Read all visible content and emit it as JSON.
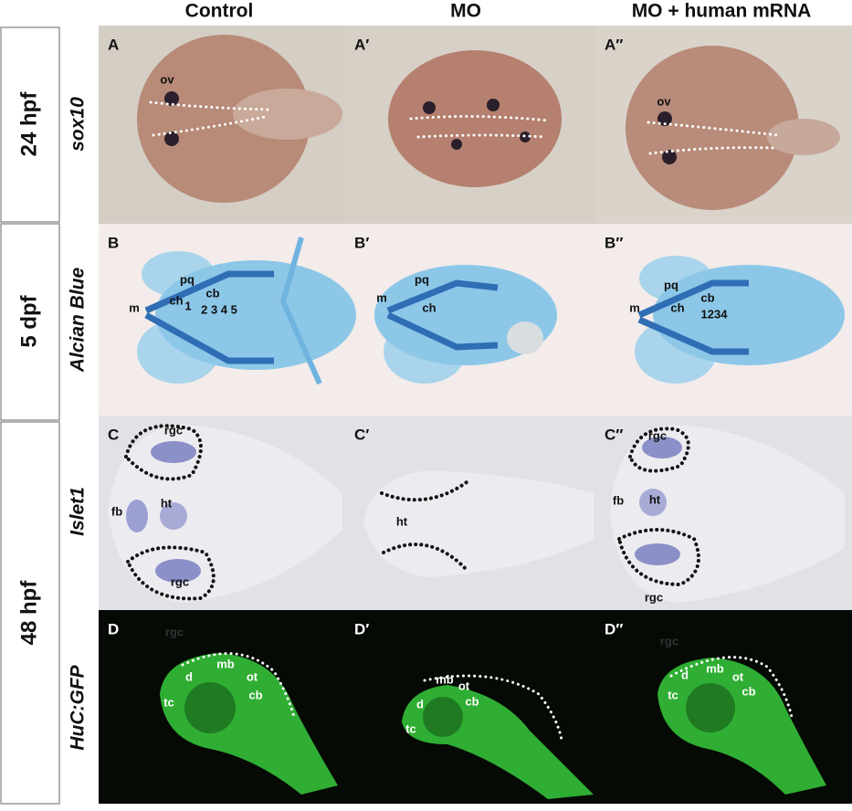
{
  "columns": [
    "Control",
    "MO",
    "MO + human mRNA"
  ],
  "stages": [
    "24 hpf",
    "5 dpf",
    "48 hpf"
  ],
  "markers": [
    "sox10",
    "Alcian Blue",
    "Islet1",
    "HuC:GFP"
  ],
  "panels": [
    {
      "letter": "A",
      "labels": [
        "ov"
      ]
    },
    {
      "letter": "A′",
      "labels": []
    },
    {
      "letter": "A″",
      "labels": [
        "ov"
      ]
    },
    {
      "letter": "B",
      "labels": [
        "pq",
        "m",
        "ch",
        "cb",
        "1",
        "2 3 4 5"
      ]
    },
    {
      "letter": "B′",
      "labels": [
        "pq",
        "m",
        "ch"
      ]
    },
    {
      "letter": "B″",
      "labels": [
        "pq",
        "m",
        "ch",
        "cb",
        "1234"
      ]
    },
    {
      "letter": "C",
      "labels": [
        "rgc",
        "fb",
        "ht",
        "rgc"
      ]
    },
    {
      "letter": "C′",
      "labels": [
        "ht"
      ]
    },
    {
      "letter": "C″",
      "labels": [
        "rgc",
        "fb",
        "ht",
        "rgc"
      ]
    },
    {
      "letter": "D",
      "labels": [
        "rgc",
        "d",
        "mb",
        "ot",
        "cb",
        "tc"
      ]
    },
    {
      "letter": "D′",
      "labels": [
        "mb",
        "ot",
        "d",
        "cb",
        "tc"
      ]
    },
    {
      "letter": "D″",
      "labels": [
        "rgc",
        "d",
        "mb",
        "ot",
        "cb",
        "tc"
      ]
    }
  ]
}
